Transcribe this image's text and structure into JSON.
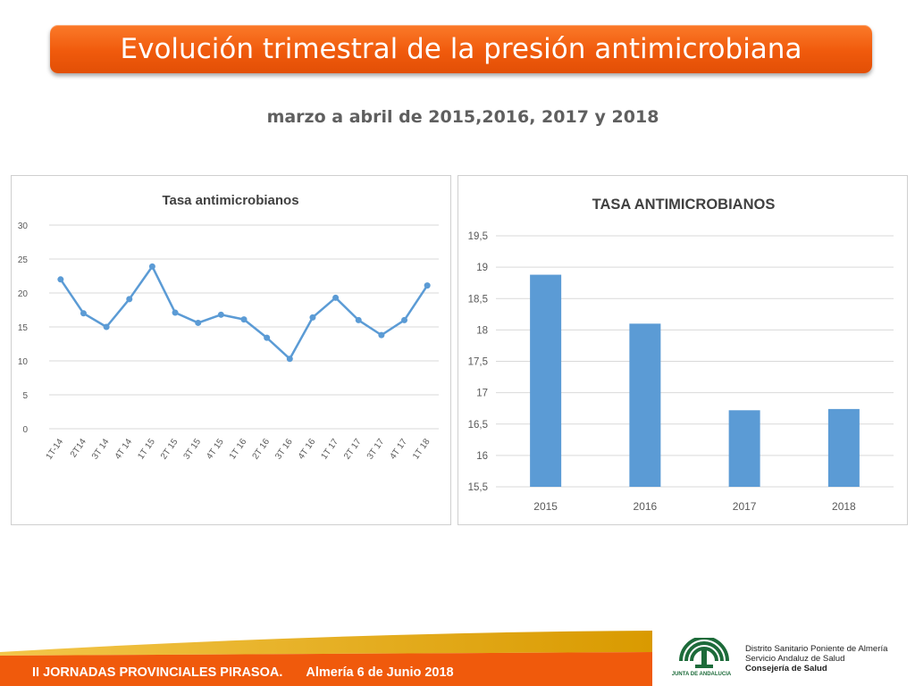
{
  "header": {
    "title": "Evolución trimestral de la presión antimicrobiana",
    "subtitle": "marzo a abril de 2015,2016, 2017 y 2018"
  },
  "chart_data": [
    {
      "type": "line",
      "title": "Tasa antimicrobianos",
      "categories": [
        "1T-14",
        "2T14",
        "3T 14",
        "4T 14",
        "1T 15",
        "2T 15",
        "3T 15",
        "4T 15",
        "1T 16",
        "2T 16",
        "3T 16",
        "4T 16",
        "1T 17",
        "2T 17",
        "3T 17",
        "4T 17",
        "1T 18"
      ],
      "values": [
        22,
        17,
        15,
        19.1,
        23.9,
        17.1,
        15.6,
        16.8,
        16.1,
        13.4,
        10.3,
        16.4,
        19.3,
        16,
        13.8,
        16,
        21.1
      ],
      "ylim": [
        0,
        30
      ],
      "yticks": [
        "0",
        "5",
        "10",
        "15",
        "20",
        "25",
        "30"
      ],
      "grid": true,
      "color": "#5b9bd5"
    },
    {
      "type": "bar",
      "title": "TASA ANTIMICROBIANOS",
      "categories": [
        "2015",
        "2016",
        "2017",
        "2018"
      ],
      "values": [
        18.88,
        18.1,
        16.72,
        16.74
      ],
      "ylim": [
        15.5,
        19.5
      ],
      "yticks": [
        "15,5",
        "16",
        "16,5",
        "17",
        "17,5",
        "18",
        "18,5",
        "19",
        "19,5"
      ],
      "grid": true,
      "color": "#5b9bd5"
    }
  ],
  "footer": {
    "event": "II JORNADAS PROVINCIALES PIRASOA.",
    "date": "Almería 6 de Junio 2018"
  },
  "logo": {
    "caption": "JUNTA DE ANDALUCIA",
    "line1": "Distrito Sanitario Poniente de Almería",
    "line2": "Servicio Andaluz de Salud",
    "line3": "Consejería de Salud"
  },
  "colors": {
    "accent_orange": "#f05a0c",
    "series_blue": "#5b9bd5",
    "andalucia_green": "#1d6b3a"
  }
}
